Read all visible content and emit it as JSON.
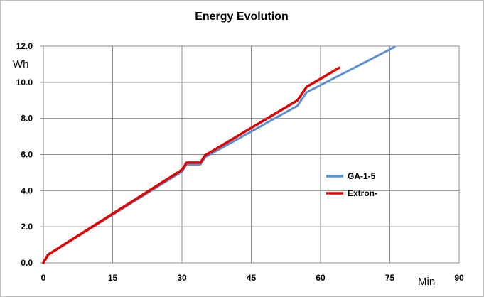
{
  "chart_data": {
    "type": "line",
    "title": "Energy Evolution",
    "xlabel": "Min",
    "ylabel": "Wh",
    "xlim": [
      0,
      90
    ],
    "ylim": [
      0,
      12
    ],
    "x_ticks": [
      "0",
      "15",
      "30",
      "45",
      "60",
      "75",
      "90"
    ],
    "y_ticks": [
      "0.0",
      "2.0",
      "4.0",
      "6.0",
      "8.0",
      "10.0",
      "12.0"
    ],
    "grid": true,
    "legend_position": "right",
    "series": [
      {
        "name": "GA-1-5",
        "color": "#5b8fd4",
        "points": [
          [
            0,
            0
          ],
          [
            1,
            0.45
          ],
          [
            30,
            5.05
          ],
          [
            31,
            5.45
          ],
          [
            34,
            5.45
          ],
          [
            35,
            5.85
          ],
          [
            55,
            8.7
          ],
          [
            57,
            9.45
          ],
          [
            65,
            10.5
          ],
          [
            76,
            11.95
          ]
        ]
      },
      {
        "name": "Extron-",
        "color": "#e00000",
        "points": [
          [
            0,
            0
          ],
          [
            1,
            0.45
          ],
          [
            30,
            5.15
          ],
          [
            31,
            5.55
          ],
          [
            34,
            5.55
          ],
          [
            35,
            5.95
          ],
          [
            55,
            9.0
          ],
          [
            57,
            9.75
          ],
          [
            64,
            10.8
          ]
        ]
      }
    ]
  }
}
